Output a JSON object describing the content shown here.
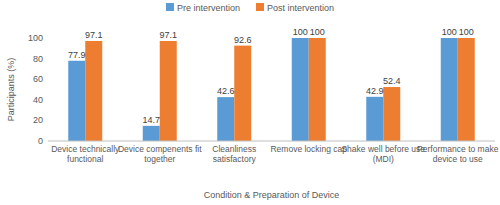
{
  "chart_data": {
    "type": "bar",
    "categories": [
      "Device technically functional",
      "Device compenents fit together",
      "Cleanliness satisfactory",
      "Remove locking cap",
      "Shake well before use (MDI)",
      "Performance to make device to use"
    ],
    "series": [
      {
        "name": "Pre intervention",
        "color": "#5b9bd5",
        "values": [
          77.9,
          14.7,
          42.6,
          100,
          42.9,
          100
        ]
      },
      {
        "name": "Post intervention",
        "color": "#ed7d31",
        "values": [
          97.1,
          97.1,
          92.6,
          100,
          52.4,
          100
        ]
      }
    ],
    "x_label": "Condition & Preparation of Device",
    "y_label": "Participants (%)",
    "ylim": [
      0,
      100
    ],
    "yticks": [
      0,
      20,
      40,
      60,
      80,
      100
    ],
    "grid": false,
    "legend": "top",
    "data_labels": true
  }
}
